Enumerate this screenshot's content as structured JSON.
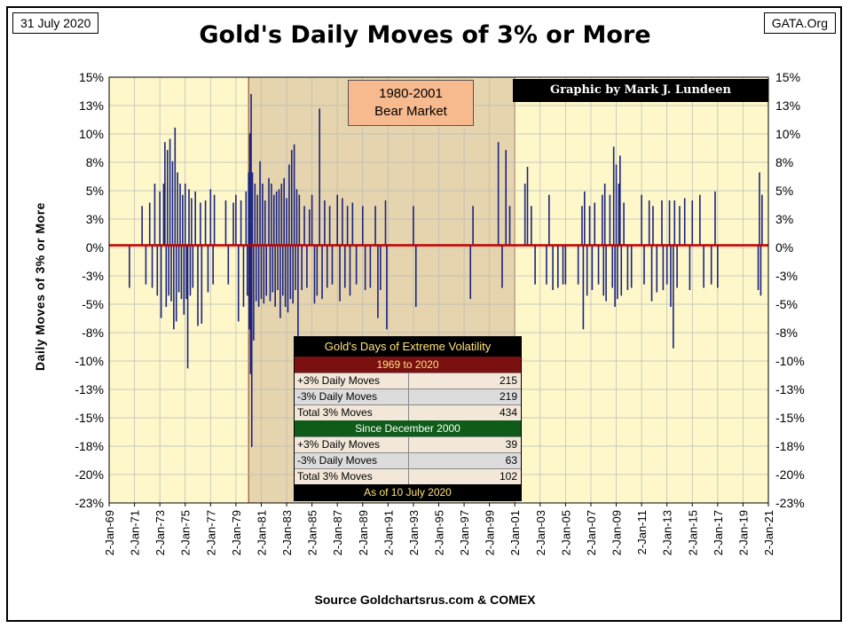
{
  "header": {
    "date": "31 July 2020",
    "site": "GATA.Org",
    "title": "Gold's Daily Moves of 3% or More"
  },
  "source": "Source Goldchartsrus.com & COMEX",
  "colors": {
    "plot_bg": "#fdf7c9",
    "bear_shade": "#e5d4ad",
    "bar": "#1a237e",
    "zero_line": "#c00000",
    "grid": "#b9b9b9"
  },
  "bear_market": {
    "label_line1": "1980-2001",
    "label_line2": "Bear Market",
    "start": 1980.0,
    "end": 2001.0
  },
  "credit": "Graphic by Mark J. Lundeen",
  "stats": {
    "title": "Gold's Days of Extreme Volatility",
    "period1": "1969 to 2020",
    "rows1": [
      {
        "label": "+3% Daily Moves",
        "value": "215"
      },
      {
        "label": "-3% Daily Moves",
        "value": "219"
      },
      {
        "label": "Total 3% Moves",
        "value": "434"
      }
    ],
    "period2": "Since December 2000",
    "rows2": [
      {
        "label": "+3% Daily Moves",
        "value": "39"
      },
      {
        "label": "-3% Daily Moves",
        "value": "63"
      },
      {
        "label": "Total 3% Moves",
        "value": "102"
      }
    ],
    "footer": "As of 10 July 2020"
  },
  "chart_data": {
    "type": "bar",
    "title": "Gold's Daily Moves of 3% or More",
    "ylabel": "Daily Moves of  3% or More",
    "xlabel": "",
    "ylim": [
      -23,
      15
    ],
    "xlim": [
      1969.0,
      2021.0
    ],
    "y_ticks": [
      "15%",
      "13%",
      "10%",
      "8%",
      "5%",
      "3%",
      "0%",
      "-3%",
      "-5%",
      "-8%",
      "-10%",
      "-13%",
      "-15%",
      "-18%",
      "-20%",
      "-23%"
    ],
    "x_ticks": [
      "2-Jan-69",
      "2-Jan-71",
      "2-Jan-73",
      "2-Jan-75",
      "2-Jan-77",
      "2-Jan-79",
      "2-Jan-81",
      "2-Jan-83",
      "2-Jan-85",
      "2-Jan-87",
      "2-Jan-89",
      "2-Jan-91",
      "2-Jan-93",
      "2-Jan-95",
      "2-Jan-97",
      "2-Jan-99",
      "2-Jan-01",
      "2-Jan-03",
      "2-Jan-05",
      "2-Jan-07",
      "2-Jan-09",
      "2-Jan-11",
      "2-Jan-13",
      "2-Jan-15",
      "2-Jan-17",
      "2-Jan-19",
      "2-Jan-21"
    ],
    "grid": true,
    "series": [
      {
        "points": [
          [
            1970.6,
            -3.8
          ],
          [
            1971.6,
            3.5
          ],
          [
            1971.9,
            -3.5
          ],
          [
            1972.2,
            3.8
          ],
          [
            1972.4,
            -3.8
          ],
          [
            1972.6,
            5.5
          ],
          [
            1972.8,
            -4.5
          ],
          [
            1973.0,
            4.8
          ],
          [
            1973.1,
            -6.5
          ],
          [
            1973.3,
            5.5
          ],
          [
            1973.4,
            9.2
          ],
          [
            1973.5,
            -5.5
          ],
          [
            1973.6,
            8.5
          ],
          [
            1973.7,
            -4.5
          ],
          [
            1973.8,
            9.5
          ],
          [
            1973.9,
            -5.0
          ],
          [
            1974.0,
            7.5
          ],
          [
            1974.1,
            -7.5
          ],
          [
            1974.2,
            10.5
          ],
          [
            1974.3,
            -6.8
          ],
          [
            1974.4,
            6.5
          ],
          [
            1974.5,
            -4.2
          ],
          [
            1974.6,
            5.5
          ],
          [
            1974.7,
            -4.8
          ],
          [
            1974.8,
            4.5
          ],
          [
            1974.9,
            -6.2
          ],
          [
            1975.0,
            5.5
          ],
          [
            1975.1,
            -4.8
          ],
          [
            1975.2,
            -11.0
          ],
          [
            1975.3,
            5.0
          ],
          [
            1975.4,
            -4.5
          ],
          [
            1975.5,
            4.2
          ],
          [
            1975.6,
            -3.8
          ],
          [
            1975.8,
            4.8
          ],
          [
            1976.0,
            -7.2
          ],
          [
            1976.2,
            3.8
          ],
          [
            1976.3,
            -7.0
          ],
          [
            1976.6,
            4.0
          ],
          [
            1976.8,
            -4.2
          ],
          [
            1977.0,
            5.0
          ],
          [
            1977.2,
            -3.5
          ],
          [
            1977.3,
            4.5
          ],
          [
            1978.2,
            4.0
          ],
          [
            1978.4,
            -3.5
          ],
          [
            1978.8,
            3.8
          ],
          [
            1979.0,
            4.5
          ],
          [
            1979.2,
            -6.8
          ],
          [
            1979.4,
            4.0
          ],
          [
            1979.6,
            -5.5
          ],
          [
            1979.8,
            4.8
          ],
          [
            1979.9,
            -4.5
          ],
          [
            1980.0,
            6.5
          ],
          [
            1980.05,
            -7.5
          ],
          [
            1980.1,
            10.0
          ],
          [
            1980.15,
            -11.5
          ],
          [
            1980.2,
            13.5
          ],
          [
            1980.25,
            -18.0
          ],
          [
            1980.3,
            6.5
          ],
          [
            1980.4,
            -8.5
          ],
          [
            1980.5,
            5.5
          ],
          [
            1980.6,
            -5.0
          ],
          [
            1980.7,
            4.5
          ],
          [
            1980.8,
            -5.5
          ],
          [
            1980.9,
            7.5
          ],
          [
            1981.0,
            -4.8
          ],
          [
            1981.1,
            5.5
          ],
          [
            1981.2,
            -5.2
          ],
          [
            1981.3,
            4.0
          ],
          [
            1981.4,
            -4.5
          ],
          [
            1981.6,
            6.0
          ],
          [
            1981.7,
            -5.0
          ],
          [
            1981.8,
            5.5
          ],
          [
            1981.9,
            -4.2
          ],
          [
            1982.0,
            4.5
          ],
          [
            1982.1,
            -5.5
          ],
          [
            1982.2,
            4.8
          ],
          [
            1982.3,
            -4.0
          ],
          [
            1982.4,
            5.0
          ],
          [
            1982.5,
            -6.5
          ],
          [
            1982.6,
            5.5
          ],
          [
            1982.7,
            -4.5
          ],
          [
            1982.8,
            6.0
          ],
          [
            1982.9,
            -5.5
          ],
          [
            1983.0,
            4.2
          ],
          [
            1983.1,
            -6.0
          ],
          [
            1983.2,
            7.2
          ],
          [
            1983.3,
            -4.8
          ],
          [
            1983.4,
            8.5
          ],
          [
            1983.5,
            -5.2
          ],
          [
            1983.6,
            9.0
          ],
          [
            1983.7,
            -4.0
          ],
          [
            1983.8,
            5.0
          ],
          [
            1983.9,
            -9.5
          ],
          [
            1984.0,
            4.5
          ],
          [
            1984.2,
            -4.0
          ],
          [
            1984.4,
            3.5
          ],
          [
            1984.6,
            -3.8
          ],
          [
            1984.8,
            3.2
          ],
          [
            1985.0,
            4.5
          ],
          [
            1985.2,
            -5.2
          ],
          [
            1985.4,
            -4.5
          ],
          [
            1985.6,
            12.2
          ],
          [
            1985.8,
            -4.8
          ],
          [
            1986.0,
            4.0
          ],
          [
            1986.2,
            -3.8
          ],
          [
            1986.4,
            3.5
          ],
          [
            1986.6,
            -3.5
          ],
          [
            1987.0,
            4.5
          ],
          [
            1987.2,
            -5.0
          ],
          [
            1987.4,
            4.2
          ],
          [
            1987.6,
            -3.8
          ],
          [
            1987.8,
            3.5
          ],
          [
            1988.0,
            -4.5
          ],
          [
            1988.2,
            3.8
          ],
          [
            1988.5,
            -3.5
          ],
          [
            1989.0,
            3.5
          ],
          [
            1989.2,
            -4.0
          ],
          [
            1989.6,
            -3.8
          ],
          [
            1990.0,
            3.5
          ],
          [
            1990.2,
            -6.5
          ],
          [
            1990.4,
            -4.0
          ],
          [
            1990.8,
            4.0
          ],
          [
            1990.9,
            -7.5
          ],
          [
            1993.0,
            3.5
          ],
          [
            1993.2,
            -5.5
          ],
          [
            1997.5,
            -4.8
          ],
          [
            1997.7,
            3.5
          ],
          [
            1999.7,
            9.2
          ],
          [
            2000.0,
            -3.8
          ],
          [
            2000.3,
            8.5
          ],
          [
            2000.6,
            3.5
          ],
          [
            2001.8,
            5.5
          ],
          [
            2002.0,
            7.0
          ],
          [
            2002.3,
            3.5
          ],
          [
            2002.6,
            -3.5
          ],
          [
            2003.5,
            -3.5
          ],
          [
            2003.7,
            4.5
          ],
          [
            2004.0,
            -4.0
          ],
          [
            2004.4,
            -3.8
          ],
          [
            2004.8,
            -3.5
          ],
          [
            2005.0,
            -3.5
          ],
          [
            2006.0,
            -3.5
          ],
          [
            2006.3,
            3.5
          ],
          [
            2006.4,
            -7.5
          ],
          [
            2006.5,
            4.8
          ],
          [
            2006.7,
            -4.5
          ],
          [
            2006.9,
            3.5
          ],
          [
            2007.1,
            -4.0
          ],
          [
            2007.3,
            3.8
          ],
          [
            2007.6,
            -3.5
          ],
          [
            2007.9,
            4.5
          ],
          [
            2008.0,
            -4.5
          ],
          [
            2008.1,
            5.5
          ],
          [
            2008.2,
            -5.0
          ],
          [
            2008.5,
            4.5
          ],
          [
            2008.7,
            -3.8
          ],
          [
            2008.8,
            8.8
          ],
          [
            2008.9,
            -5.5
          ],
          [
            2009.0,
            7.2
          ],
          [
            2009.1,
            -4.8
          ],
          [
            2009.2,
            5.5
          ],
          [
            2009.3,
            8.0
          ],
          [
            2009.4,
            -4.5
          ],
          [
            2009.6,
            3.8
          ],
          [
            2009.9,
            -4.0
          ],
          [
            2010.2,
            -3.8
          ],
          [
            2011.0,
            4.5
          ],
          [
            2011.2,
            -3.5
          ],
          [
            2011.6,
            4.0
          ],
          [
            2011.8,
            -5.0
          ],
          [
            2011.9,
            3.5
          ],
          [
            2012.2,
            -4.2
          ],
          [
            2012.6,
            4.0
          ],
          [
            2012.7,
            -4.0
          ],
          [
            2013.0,
            -3.5
          ],
          [
            2013.2,
            4.0
          ],
          [
            2013.3,
            -5.5
          ],
          [
            2013.5,
            -9.2
          ],
          [
            2013.6,
            4.0
          ],
          [
            2013.8,
            -3.8
          ],
          [
            2014.0,
            3.5
          ],
          [
            2014.4,
            4.2
          ],
          [
            2014.8,
            -4.0
          ],
          [
            2015.0,
            4.0
          ],
          [
            2015.6,
            4.5
          ],
          [
            2015.9,
            -3.8
          ],
          [
            2016.5,
            -3.5
          ],
          [
            2016.8,
            4.8
          ],
          [
            2017.0,
            -3.8
          ],
          [
            2020.2,
            -4.0
          ],
          [
            2020.3,
            6.5
          ],
          [
            2020.4,
            -4.5
          ],
          [
            2020.5,
            4.5
          ]
        ]
      }
    ]
  }
}
